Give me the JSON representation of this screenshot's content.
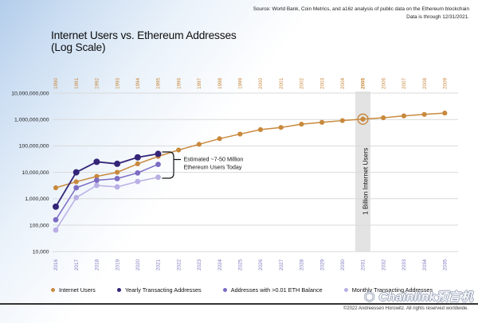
{
  "source": {
    "line1": "Source: World Bank, Coin Metrics, and a16z analysis of public data on the Ethereum blockchain",
    "line2": "Data is through 12/31/2021."
  },
  "title": {
    "line1": "Internet Users vs. Ethereum Addresses",
    "line2": "(Log Scale)"
  },
  "chart_data": {
    "type": "line",
    "log_scale": true,
    "y_ticks": [
      {
        "label": "10,000,000,000",
        "value": 10000000000
      },
      {
        "label": "1,000,000,000",
        "value": 1000000000
      },
      {
        "label": "100,000,000",
        "value": 100000000
      },
      {
        "label": "10,000,000",
        "value": 10000000
      },
      {
        "label": "1,000,000",
        "value": 1000000
      },
      {
        "label": "100,000",
        "value": 100000
      },
      {
        "label": "10,000",
        "value": 10000
      }
    ],
    "top_axis_years": [
      "1990",
      "1991",
      "1992",
      "1993",
      "1994",
      "1995",
      "1996",
      "1997",
      "1998",
      "1999",
      "2000",
      "2001",
      "2002",
      "2003",
      "2004",
      "2005",
      "2006",
      "2007",
      "2008",
      "2009"
    ],
    "bottom_axis_years": [
      "2016",
      "2017",
      "2018",
      "2019",
      "2020",
      "2021",
      "2022",
      "2023",
      "2024",
      "2025",
      "2026",
      "2027",
      "2028",
      "2029",
      "2030",
      "2031",
      "2032",
      "2033",
      "2034",
      "2035"
    ],
    "highlight": {
      "top_year": "2005",
      "bottom_year": "2031",
      "label": "1 Billion Internet Users"
    },
    "annotation": {
      "line1": "Estimated ~7-50 Million",
      "line2": "Ethereum Users Today"
    },
    "series": [
      {
        "name": "Internet Users",
        "axis": "top",
        "color": "#c8893c",
        "years": [
          "1990",
          "1991",
          "1992",
          "1993",
          "1994",
          "1995",
          "1996",
          "1997",
          "1998",
          "1999",
          "2000",
          "2001",
          "2002",
          "2003",
          "2004",
          "2005",
          "2006",
          "2007",
          "2008",
          "2009"
        ],
        "values": [
          2600000,
          4400000,
          7000000,
          10000000,
          21000000,
          40000000,
          70000000,
          115000000,
          188000000,
          280000000,
          415000000,
          500000000,
          665000000,
          780000000,
          910000000,
          1030000000,
          1160000000,
          1370000000,
          1560000000,
          1750000000
        ]
      },
      {
        "name": "Yearly Transacting Addresses",
        "axis": "bottom",
        "color": "#342578",
        "years": [
          "2016",
          "2017",
          "2018",
          "2019",
          "2020",
          "2021"
        ],
        "values": [
          500000,
          10000000,
          25000000,
          21000000,
          37000000,
          50000000
        ]
      },
      {
        "name": "Addresses with >0.01 ETH Balance",
        "axis": "bottom",
        "color": "#7c6cc4",
        "years": [
          "2016",
          "2017",
          "2018",
          "2019",
          "2020",
          "2021"
        ],
        "values": [
          160000,
          2600000,
          5000000,
          5800000,
          9500000,
          20000000
        ]
      },
      {
        "name": "Monthly Transacting Addresses",
        "axis": "bottom",
        "color": "#b9afe4",
        "years": [
          "2016",
          "2017",
          "2018",
          "2019",
          "2020",
          "2021"
        ],
        "values": [
          65000,
          1100000,
          3200000,
          2800000,
          4500000,
          6500000
        ]
      }
    ]
  },
  "legend": [
    {
      "label": "Internet Users",
      "color": "#c8893c"
    },
    {
      "label": "Yearly Transacting Addresses",
      "color": "#342578"
    },
    {
      "label": "Addresses with >0.01 ETH Balance",
      "color": "#7c6cc4"
    },
    {
      "label": "Monthly Transacting Addresses",
      "color": "#b9afe4"
    }
  ],
  "footer": {
    "copyright": "©2022 Andreessen Horowitz. All rights reserved worldwide.",
    "watermark_icon": "⬡",
    "watermark": "Chainlink预言机"
  }
}
